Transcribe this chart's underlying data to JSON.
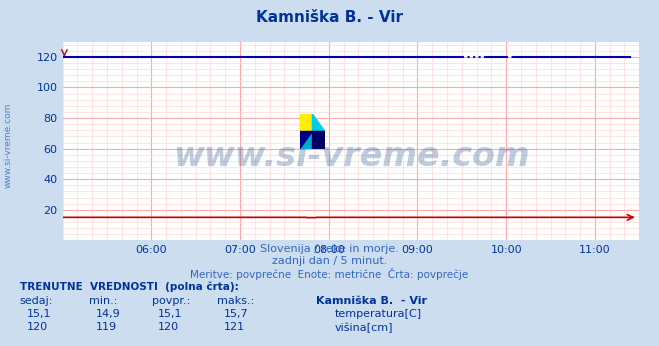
{
  "title": "Kamniška B. - Vir",
  "bg_color": "#ccddf0",
  "plot_bg_color": "#ffffff",
  "grid_color_major": "#ffaaaa",
  "grid_color_minor": "#ffd0d0",
  "xlim_hours": [
    5.0,
    11.5
  ],
  "ylim": [
    0,
    130
  ],
  "yticks": [
    20,
    40,
    60,
    80,
    100,
    120
  ],
  "xtick_labels": [
    "06:00",
    "07:00",
    "08:00",
    "09:00",
    "10:00",
    "11:00"
  ],
  "xtick_positions": [
    6.0,
    7.0,
    8.0,
    9.0,
    10.0,
    11.0
  ],
  "temp_color": "#cc0000",
  "height_color": "#0000bb",
  "height_dotted_color": "#0000ff",
  "watermark_text": "www.si-vreme.com",
  "watermark_color": "#1a4a8a",
  "watermark_alpha": 0.28,
  "watermark_fontsize": 24,
  "subtitle1": "Slovenija / reke in morje.",
  "subtitle2": "zadnji dan / 5 minut.",
  "subtitle3": "Meritve: povprečne  Enote: metrične  Črta: povprečje",
  "subtitle_color": "#3366bb",
  "footer_color": "#003399",
  "col_headers": [
    "sedaj:",
    "min.:",
    "povpr.:",
    "maks.:"
  ],
  "temp_row": [
    "15,1",
    "14,9",
    "15,1",
    "15,7"
  ],
  "height_row": [
    "120",
    "119",
    "120",
    "121"
  ],
  "legend_title": "Kamniška B.  - Vir",
  "legend_temp": "temperatura[C]",
  "legend_height": "višina[cm]",
  "temp_color_swatch": "#cc0000",
  "height_color_swatch": "#000099",
  "ylabel_text": "www.si-vreme.com",
  "ylabel_color": "#3366bb",
  "arrow_color": "#cc0000",
  "dotted_start": 9.5,
  "dotted_end": 9.75,
  "dotted_start2": 10.0,
  "dotted_end2": 10.08,
  "temp_value": 15.1,
  "height_value": 120.0,
  "t_start": 5.0,
  "t_end": 11.4
}
